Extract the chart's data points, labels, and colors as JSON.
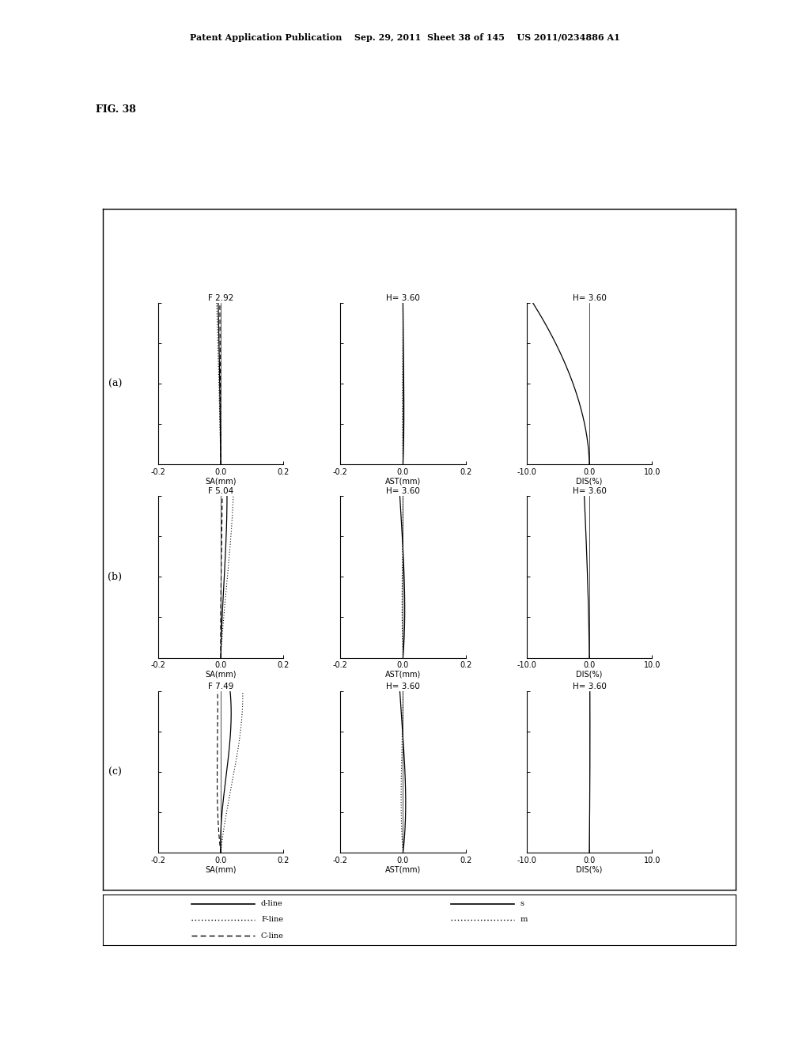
{
  "header": "Patent Application Publication    Sep. 29, 2011  Sheet 38 of 145    US 2011/0234886 A1",
  "fig_label": "FIG. 38",
  "row_labels": [
    "(a)",
    "(b)",
    "(c)"
  ],
  "sa_titles": [
    "F 2.92",
    "F 5.04",
    "F 7.49"
  ],
  "ast_titles": [
    "H= 3.60",
    "H= 3.60",
    "H= 3.60"
  ],
  "dis_titles": [
    "H= 3.60",
    "H= 3.60",
    "H= 3.60"
  ],
  "sa_xlim": [
    -0.2,
    0.2
  ],
  "ast_xlim": [
    -0.2,
    0.2
  ],
  "dis_xlim": [
    -10.0,
    10.0
  ],
  "ylim": [
    0.0,
    1.0
  ],
  "sa_xlabel": "SA(mm)",
  "ast_xlabel": "AST(mm)",
  "dis_xlabel": "DIS(%)",
  "sa_xticks": [
    -0.2,
    0.0,
    0.2
  ],
  "ast_xticks": [
    -0.2,
    0.0,
    0.2
  ],
  "dis_xticks": [
    -10.0,
    0.0,
    10.0
  ],
  "yticks": [
    0.0,
    0.25,
    0.5,
    0.75,
    1.0
  ],
  "background_color": "#ffffff"
}
